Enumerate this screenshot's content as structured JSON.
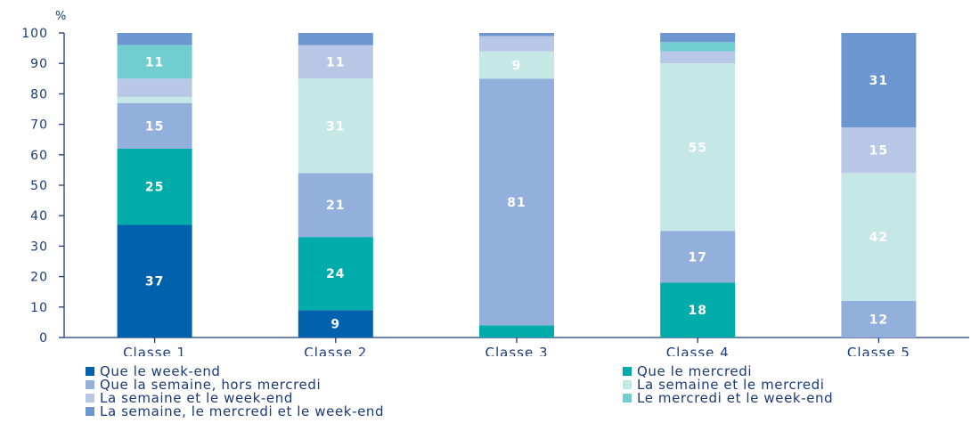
{
  "chart_data": {
    "type": "bar",
    "stacked": true,
    "y_unit_label": "%",
    "ylim": [
      0,
      100
    ],
    "yticks": [
      "0",
      "10",
      "20",
      "30",
      "40",
      "50",
      "60",
      "70",
      "80",
      "90",
      "100"
    ],
    "categories": [
      "Classe 1",
      "Classe 2",
      "Classe 3",
      "Classe 4",
      "Classe 5"
    ],
    "grid": false,
    "legend_position": "bottom",
    "series": [
      {
        "name": "Que le week-end",
        "color": "#0062ac",
        "values": [
          37,
          9,
          0,
          0,
          0
        ],
        "labels": [
          "37",
          "9",
          "",
          "",
          ""
        ]
      },
      {
        "name": "Que le mercredi",
        "color": "#00aca9",
        "values": [
          25,
          24,
          4,
          18,
          0
        ],
        "labels": [
          "25",
          "24",
          "",
          "18",
          ""
        ]
      },
      {
        "name": "Que la semaine, hors mercredi",
        "color": "#93afdc",
        "values": [
          15,
          21,
          81,
          17,
          12
        ],
        "labels": [
          "15",
          "21",
          "81",
          "17",
          "12"
        ]
      },
      {
        "name": "La semaine et le mercredi",
        "color": "#c5e7e6",
        "values": [
          2,
          31,
          9,
          55,
          42
        ],
        "labels": [
          "",
          "31",
          "9",
          "55",
          "42"
        ]
      },
      {
        "name": "La semaine et le week-end",
        "color": "#b9c7e7",
        "values": [
          6,
          11,
          5,
          4,
          15
        ],
        "labels": [
          "",
          "11",
          "",
          "",
          "15"
        ]
      },
      {
        "name": "Le mercredi et le week-end",
        "color": "#72cdd0",
        "values": [
          11,
          0,
          0,
          3,
          0
        ],
        "labels": [
          "11",
          "",
          "",
          "",
          ""
        ]
      },
      {
        "name": "La semaine, le mercredi et le week-end",
        "color": "#6c96cf",
        "values": [
          4,
          4,
          1,
          3,
          31
        ],
        "labels": [
          "",
          "",
          "",
          "",
          "31"
        ]
      }
    ]
  }
}
